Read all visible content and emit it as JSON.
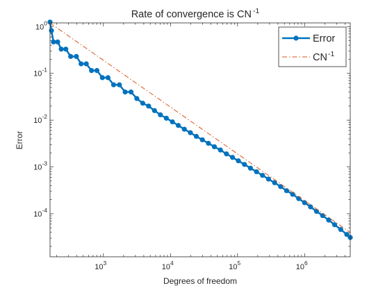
{
  "chart_data": {
    "type": "line",
    "title": "Rate of convergence is CN",
    "title_sup": "-1",
    "xlabel": "Degrees of freedom",
    "ylabel": "Error",
    "xscale": "log",
    "yscale": "log",
    "xlim": [
      160,
      4800000
    ],
    "ylim": [
      1.2e-05,
      1.2
    ],
    "xticks": [
      {
        "base": "10",
        "exp": "3",
        "value": 1000
      },
      {
        "base": "10",
        "exp": "4",
        "value": 10000
      },
      {
        "base": "10",
        "exp": "5",
        "value": 100000
      },
      {
        "base": "10",
        "exp": "6",
        "value": 1000000
      }
    ],
    "yticks": [
      {
        "base": "10",
        "exp": "0",
        "value": 1
      },
      {
        "base": "10",
        "exp": "-1",
        "value": 0.1
      },
      {
        "base": "10",
        "exp": "-2",
        "value": 0.01
      },
      {
        "base": "10",
        "exp": "-3",
        "value": 0.001
      },
      {
        "base": "10",
        "exp": "-4",
        "value": 0.0001
      }
    ],
    "grid": false,
    "legend_position": "top-right",
    "series": [
      {
        "name": "Error",
        "style": "solid-marker",
        "color": "#0072BD",
        "x": [
          160,
          168,
          180,
          208,
          235,
          275,
          325,
          395,
          465,
          555,
          665,
          800,
          965,
          1170,
          1420,
          1730,
          2110,
          2580,
          3150,
          3860,
          4720,
          5780,
          7080,
          8680,
          10700,
          13100,
          16100,
          19800,
          24300,
          29900,
          36800,
          45200,
          55600,
          68400,
          84100,
          103000,
          127000,
          156000,
          192000,
          236000,
          290000,
          357000,
          439000,
          540000,
          664000,
          817000,
          1000000,
          1230000,
          1510000,
          1860000,
          2290000,
          2810000,
          3460000,
          4260000,
          4800000
        ],
        "y": [
          1.25,
          0.82,
          0.47,
          0.47,
          0.33,
          0.33,
          0.23,
          0.23,
          0.16,
          0.16,
          0.115,
          0.115,
          0.081,
          0.081,
          0.057,
          0.057,
          0.04,
          0.04,
          0.029,
          0.023,
          0.02,
          0.016,
          0.013,
          0.011,
          0.0092,
          0.0077,
          0.0064,
          0.0054,
          0.0045,
          0.0038,
          0.0032,
          0.0027,
          0.0023,
          0.0019,
          0.0016,
          0.00135,
          0.00113,
          0.00094,
          0.00079,
          0.00066,
          0.00055,
          0.00046,
          0.00038,
          0.00031,
          0.00026,
          0.00021,
          0.000172,
          0.00014,
          0.000112,
          9.1e-05,
          7.3e-05,
          5.8e-05,
          4.6e-05,
          3.6e-05,
          3.1e-05
        ]
      },
      {
        "name": "CN",
        "name_sup": "-1",
        "style": "dash-dot",
        "color": "#D95319",
        "x": [
          160,
          4800000
        ],
        "y": [
          1.19,
          3.97e-05
        ]
      }
    ]
  }
}
